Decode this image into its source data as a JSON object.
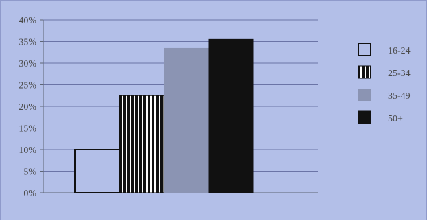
{
  "chart_data": {
    "type": "bar",
    "categories": [
      "16-24",
      "25-34",
      "35-49",
      "50+"
    ],
    "values": [
      10,
      22.5,
      33.5,
      35.5
    ],
    "ylim": [
      0,
      40
    ],
    "yticks": [
      0,
      5,
      10,
      15,
      20,
      25,
      30,
      35,
      40
    ],
    "ytick_labels": [
      "0%",
      "5%",
      "10%",
      "15%",
      "20%",
      "25%",
      "30%",
      "35%",
      "40%"
    ],
    "grid": true,
    "legend_position": "right",
    "legend": [
      {
        "label": "16-24",
        "style": "outline"
      },
      {
        "label": "25-34",
        "style": "vertical-stripes"
      },
      {
        "label": "35-49",
        "style": "solid-gray"
      },
      {
        "label": "50+",
        "style": "solid-black"
      }
    ],
    "colors": {
      "background": "#b3bfe8",
      "grid": "#6b74a6",
      "axis": "#5e6674",
      "outline_fill": "#b3bfe8",
      "stripe_fill": "#111111",
      "stripe_line": "#ffffff",
      "gray_fill": "#8b94b3",
      "black_fill": "#111111",
      "text": "#4a4a4a"
    }
  }
}
